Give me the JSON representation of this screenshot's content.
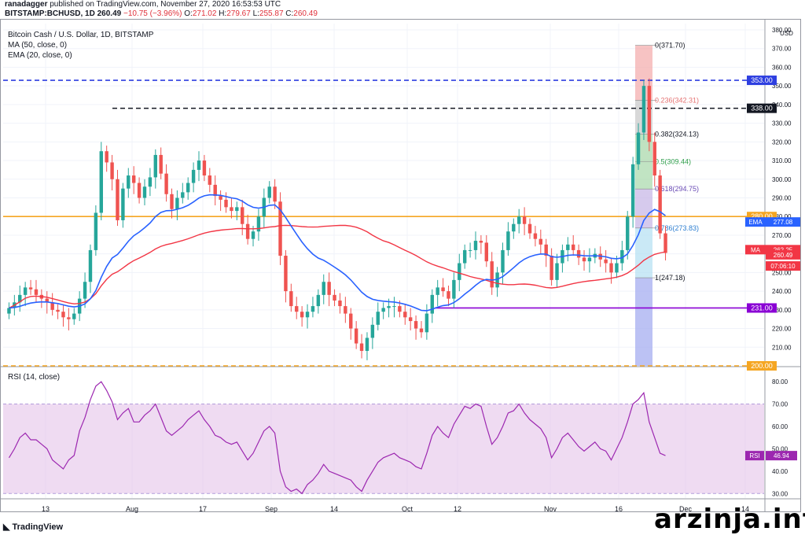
{
  "header": {
    "author": "ranadagger",
    "published": "published on TradingView.com, November 27, 2020 16:53:53 UTC",
    "symbol": "BITSTAMP:BCHUSD, 1D",
    "last": "260.49",
    "change": "−10.75 (−3.96%)",
    "o_label": "O:",
    "o": "271.02",
    "h_label": "H:",
    "h": "279.67",
    "l_label": "L:",
    "l": "255.87",
    "c_label": "C:",
    "c": "260.49"
  },
  "legend": {
    "title": "Bitcoin Cash / U.S. Dollar, 1D, BITSTAMP",
    "ma": "MA (50, close, 0)",
    "ema": "EMA (20, close, 0)",
    "rsi": "RSI (14, close)"
  },
  "footer": {
    "logo": "TradingView",
    "watermark": "arzinja.info"
  },
  "colors": {
    "up": "#26a69a",
    "down": "#ef5350",
    "ema": "#2962ff",
    "ma": "#f23645",
    "rsi": "#9c27b0",
    "rsi_band": "#e1bee7",
    "orange": "#f5a623",
    "blue_dash": "#2e3fe0",
    "purple_line": "#8a00d4"
  },
  "chart_data": [
    {
      "type": "line",
      "title": "Bitcoin Cash / U.S. Dollar, 1D, BITSTAMP",
      "currency": "USD",
      "ylim": [
        200,
        380
      ],
      "y_ticks": [
        210,
        220,
        230,
        240,
        250,
        260,
        270,
        280,
        290,
        300,
        310,
        320,
        330,
        340,
        350,
        360,
        370,
        380
      ],
      "y_tick_labels": [
        "210.00",
        "220.00",
        "230.00",
        "240.00",
        "250.00",
        "260.00",
        "270.00",
        "280.00",
        "290.00",
        "300.00",
        "310.00",
        "320.00",
        "330.00",
        "340.00",
        "350.00",
        "360.00",
        "370.00",
        "380.00"
      ],
      "x_labels": [
        "13",
        "Aug",
        "17",
        "Sep",
        "14",
        "Oct",
        "12",
        "Nov",
        "16",
        "Dec",
        "14"
      ],
      "close": [
        231,
        234,
        238,
        242,
        241,
        238,
        236,
        234,
        230,
        229,
        226,
        225,
        228,
        236,
        245,
        262,
        282,
        315,
        309,
        300,
        278,
        295,
        302,
        298,
        290,
        296,
        301,
        313,
        303,
        292,
        284,
        290,
        293,
        298,
        305,
        310,
        302,
        297,
        291,
        289,
        285,
        283,
        285,
        276,
        268,
        272,
        280,
        290,
        296,
        288,
        259,
        240,
        232,
        229,
        226,
        229,
        232,
        238,
        245,
        238,
        235,
        232,
        228,
        220,
        212,
        208,
        215,
        222,
        229,
        231,
        232,
        232,
        229,
        226,
        224,
        220,
        218,
        228,
        238,
        242,
        240,
        236,
        246,
        255,
        262,
        262,
        267,
        266,
        256,
        242,
        250,
        262,
        272,
        276,
        280,
        276,
        271,
        268,
        265,
        259,
        246,
        255,
        262,
        265,
        262,
        258,
        256,
        258,
        260,
        257,
        255,
        250,
        255,
        262,
        280,
        308,
        325,
        350,
        320,
        302,
        271,
        260.49
      ],
      "ema20_last": 277.08,
      "ma50_last": 262.25,
      "horizontal_levels": [
        {
          "price": 353.0,
          "label": "353.00",
          "style": "dashed",
          "color": "#2e3fe0"
        },
        {
          "price": 338.0,
          "label": "338.00",
          "style": "dashed",
          "color": "#131722"
        },
        {
          "price": 280.0,
          "label": "280.00",
          "style": "solid",
          "color": "#f5a623"
        },
        {
          "price": 231.0,
          "label": "231.00",
          "style": "solid",
          "color": "#8a00d4"
        },
        {
          "price": 200.0,
          "label": "200.00",
          "style": "dashed",
          "color": "#f5a623"
        }
      ],
      "fibonacci": [
        {
          "ratio": "0",
          "price": 371.7,
          "label": "0(371.70)"
        },
        {
          "ratio": "0.236",
          "price": 342.31,
          "label": "0.236(342.31)"
        },
        {
          "ratio": "0.382",
          "price": 324.13,
          "label": "0.382(324.13)"
        },
        {
          "ratio": "0.5",
          "price": 309.44,
          "label": "0.5(309.44)"
        },
        {
          "ratio": "0.618",
          "price": 294.75,
          "label": "0.618(294.75)"
        },
        {
          "ratio": "0.786",
          "price": 273.83,
          "label": "0.786(273.83)"
        },
        {
          "ratio": "1",
          "price": 247.18,
          "label": "1(247.18)"
        }
      ],
      "price_tags": [
        {
          "name": "EMA",
          "value": "277.08",
          "price": 277.08,
          "color": "#2962ff"
        },
        {
          "name": "MA",
          "value": "262.25",
          "price": 262.25,
          "color": "#f23645"
        },
        {
          "name": "",
          "value": "260.49",
          "price": 259.5,
          "color": "#f23645"
        },
        {
          "name": "",
          "value": "07:06:10",
          "price": 253.5,
          "color": "#f23645"
        }
      ]
    },
    {
      "type": "line",
      "title": "RSI (14, close)",
      "ylim": [
        28,
        86
      ],
      "y_ticks": [
        30,
        40,
        50,
        60,
        70,
        80
      ],
      "y_tick_labels": [
        "30.00",
        "40.00",
        "50.00",
        "60.00",
        "70.00",
        "80.00"
      ],
      "band": [
        30,
        70
      ],
      "last": 46.94,
      "last_label": "RSI",
      "last_value": "46.94",
      "values": [
        46,
        50,
        55,
        57,
        54,
        54,
        52,
        50,
        45,
        43,
        41,
        45,
        47,
        58,
        64,
        72,
        78,
        80,
        76,
        71,
        63,
        66,
        68,
        62,
        62,
        65,
        67,
        70,
        64,
        58,
        56,
        58,
        60,
        63,
        65,
        67,
        63,
        60,
        56,
        55,
        53,
        52,
        53,
        49,
        45,
        48,
        53,
        58,
        60,
        57,
        40,
        33,
        31,
        32,
        30,
        34,
        36,
        39,
        43,
        40,
        39,
        38,
        37,
        36,
        33,
        31,
        36,
        40,
        44,
        46,
        47,
        48,
        46,
        45,
        44,
        42,
        41,
        48,
        56,
        60,
        57,
        55,
        61,
        65,
        69,
        68,
        70,
        69,
        60,
        52,
        55,
        60,
        66,
        67,
        70,
        66,
        63,
        61,
        59,
        55,
        46,
        50,
        55,
        57,
        54,
        51,
        49,
        51,
        53,
        50,
        49,
        45,
        50,
        55,
        62,
        70,
        72,
        75,
        62,
        55,
        48,
        46.94
      ]
    }
  ]
}
